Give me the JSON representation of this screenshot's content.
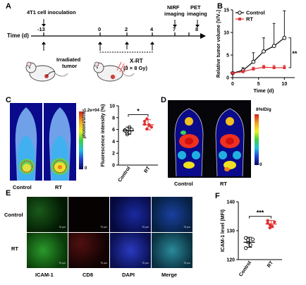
{
  "panels": {
    "A": "A",
    "B": "B",
    "C": "C",
    "D": "D",
    "E": "E",
    "F": "F"
  },
  "timeline": {
    "axis_label": "Time (d)",
    "inoculation": "4T1 cell inoculation",
    "days": [
      "-13",
      "0",
      "2",
      "4",
      "7",
      "8"
    ],
    "nirf": [
      "NIRF",
      "imaging"
    ],
    "pet": [
      "PET",
      "imaging"
    ],
    "irradiated": [
      "Irradiated",
      "tumor"
    ],
    "xrt": [
      "X-RT",
      "(3 × 8 Gy)"
    ]
  },
  "panelC": {
    "labels": [
      "Control",
      "RT"
    ],
    "cbar_max": "1.2e+04",
    "cbar_min": "0",
    "cbar_unit": "photons/s/cm²",
    "star": "*"
  },
  "panelD": {
    "labels": [
      "Control",
      "RT"
    ],
    "cbar_max": "8%ID/g",
    "cbar_min": "0"
  },
  "panelE": {
    "rows": [
      "Control",
      "RT"
    ],
    "columns": [
      "ICAM-1",
      "CD8",
      "DAPI",
      "Merge"
    ],
    "scale": "75 μm"
  },
  "panelF": {
    "star": "***"
  },
  "chart_data": [
    {
      "type": "line",
      "title": "",
      "xlabel": "Time (d)",
      "ylabel": "Relative tumor volume (V/V₀)",
      "xlim": [
        0,
        12
      ],
      "ylim": [
        0,
        15
      ],
      "xticks": [
        0,
        5,
        10
      ],
      "yticks": [
        0,
        5,
        10,
        15
      ],
      "legend": "top-left",
      "significance": "**",
      "series": [
        {
          "name": "Control",
          "x": [
            0,
            2,
            4,
            6,
            8,
            10
          ],
          "y": [
            1.0,
            1.6,
            3.5,
            5.8,
            7.0,
            8.8
          ],
          "err": [
            0.2,
            0.6,
            2.0,
            3.0,
            5.0,
            6.0
          ],
          "color": "#000000"
        },
        {
          "name": "RT",
          "x": [
            0,
            2,
            4,
            6,
            8,
            10
          ],
          "y": [
            1.0,
            1.3,
            1.9,
            2.3,
            2.2,
            2.2
          ],
          "err": [
            0.1,
            0.3,
            0.4,
            0.4,
            0.5,
            0.5
          ],
          "color": "#e03030"
        }
      ]
    },
    {
      "type": "scatter",
      "title": "",
      "ylabel": "Fluorescence intensity (%)",
      "categories": [
        "Control",
        "RT"
      ],
      "ylim": [
        0,
        10
      ],
      "yticks": [
        0,
        2,
        4,
        6,
        8,
        10
      ],
      "groups": [
        {
          "name": "Control",
          "values": [
            5.9,
            5.6,
            5.5,
            6.0,
            5.8,
            5.2,
            6.4
          ],
          "mean": 5.8,
          "color": "#000000"
        },
        {
          "name": "RT",
          "values": [
            6.9,
            7.8,
            6.7,
            6.4,
            7.4,
            6.1,
            6.8
          ],
          "mean": 6.8,
          "color": "#e03030"
        }
      ]
    },
    {
      "type": "scatter",
      "title": "",
      "ylabel": "ICAM-1 level (MFI)",
      "categories": [
        "Control",
        "RT"
      ],
      "ylim": [
        120,
        140
      ],
      "yticks": [
        120,
        130,
        140
      ],
      "groups": [
        {
          "name": "Control",
          "values": [
            127.5,
            126.0,
            125.0,
            127.0,
            124.0,
            126.8
          ],
          "mean": 126.0,
          "color": "#000000"
        },
        {
          "name": "RT",
          "values": [
            133.5,
            132.0,
            131.5,
            133.0,
            132.6,
            131.0
          ],
          "mean": 132.3,
          "color": "#e03030"
        }
      ]
    }
  ]
}
